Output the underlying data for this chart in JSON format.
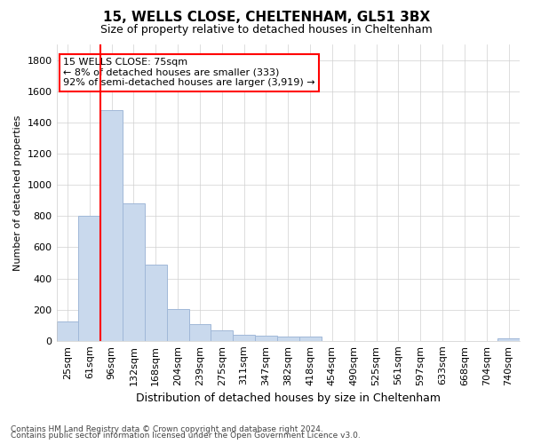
{
  "title1": "15, WELLS CLOSE, CHELTENHAM, GL51 3BX",
  "title2": "Size of property relative to detached houses in Cheltenham",
  "xlabel": "Distribution of detached houses by size in Cheltenham",
  "ylabel": "Number of detached properties",
  "footnote1": "Contains HM Land Registry data © Crown copyright and database right 2024.",
  "footnote2": "Contains public sector information licensed under the Open Government Licence v3.0.",
  "categories": [
    "25sqm",
    "61sqm",
    "96sqm",
    "132sqm",
    "168sqm",
    "204sqm",
    "239sqm",
    "275sqm",
    "311sqm",
    "347sqm",
    "382sqm",
    "418sqm",
    "454sqm",
    "490sqm",
    "525sqm",
    "561sqm",
    "597sqm",
    "633sqm",
    "668sqm",
    "704sqm",
    "740sqm"
  ],
  "values": [
    125,
    800,
    1480,
    880,
    490,
    205,
    105,
    65,
    40,
    35,
    30,
    25,
    0,
    0,
    0,
    0,
    0,
    0,
    0,
    0,
    15
  ],
  "bar_color": "#c9d9ed",
  "bar_edge_color": "#a0b8d8",
  "ylim": [
    0,
    1900
  ],
  "yticks": [
    0,
    200,
    400,
    600,
    800,
    1000,
    1200,
    1400,
    1600,
    1800
  ],
  "vline_color": "red",
  "annotation_text": "15 WELLS CLOSE: 75sqm\n← 8% of detached houses are smaller (333)\n92% of semi-detached houses are larger (3,919) →",
  "bg_color": "#ffffff",
  "grid_color": "#d0d0d0",
  "title1_fontsize": 11,
  "title2_fontsize": 9,
  "xlabel_fontsize": 9,
  "ylabel_fontsize": 8,
  "tick_fontsize": 8,
  "footnote_fontsize": 6.5
}
